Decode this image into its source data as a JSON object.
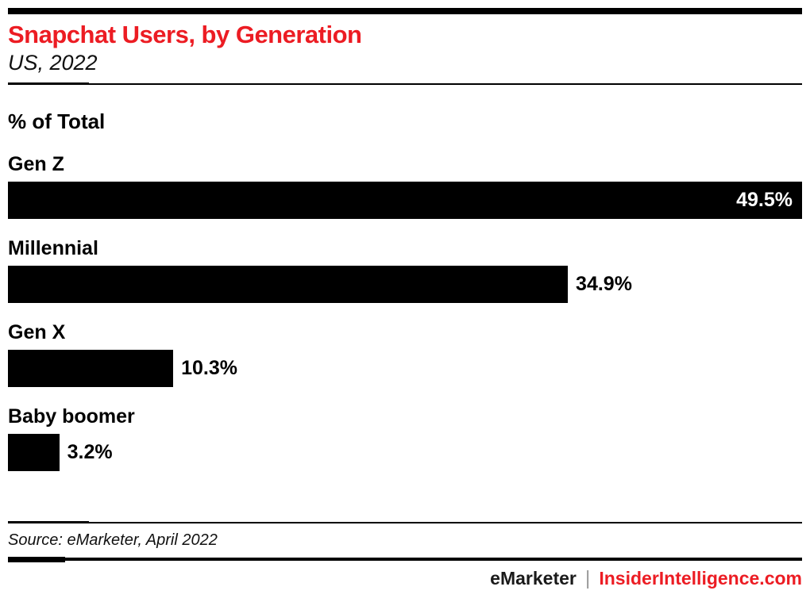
{
  "header": {
    "title": "Snapchat Users, by Generation",
    "subtitle": "US, 2022"
  },
  "chart_data": {
    "type": "bar",
    "orientation": "horizontal",
    "metric_label": "% of Total",
    "categories": [
      "Gen Z",
      "Millennial",
      "Gen X",
      "Baby boomer"
    ],
    "values": [
      49.5,
      34.9,
      10.3,
      3.2
    ],
    "value_labels": [
      "49.5%",
      "34.9%",
      "10.3%",
      "3.2%"
    ],
    "label_inside": [
      true,
      false,
      false,
      false
    ],
    "xlim": [
      0,
      49.5
    ],
    "bar_color": "#000000",
    "grid": false,
    "legend": "none"
  },
  "footer": {
    "source": "Source: eMarketer, April 2022",
    "brand_left": "eMarketer",
    "separator": "|",
    "brand_right": "InsiderIntelligence.com"
  },
  "colors": {
    "accent_red": "#ec1c23",
    "bar_black": "#000000",
    "separator_gray": "#9b9b9b"
  }
}
